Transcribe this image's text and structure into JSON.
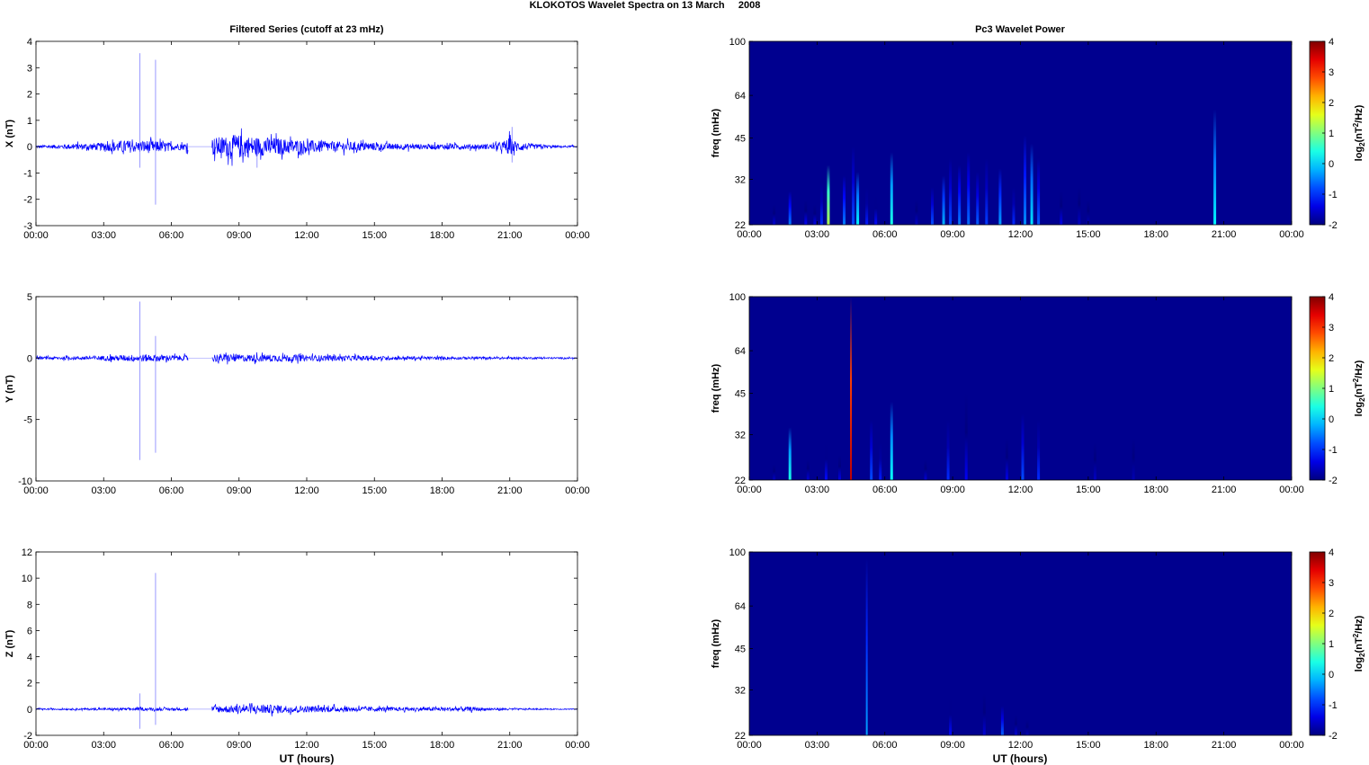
{
  "figure": {
    "title": "KLOKOTOS Wavelet Spectra on 13 March     2008",
    "left_column_title": "Filtered Series (cutoff at 23 mHz)",
    "right_column_title": "Pc3 Wavelet Power",
    "xlabel": "UT (hours)"
  },
  "colors": {
    "trace": "#0000ff",
    "background": "#00008f"
  },
  "chart_data": [
    {
      "type": "line",
      "id": "X",
      "ylabel": "X (nT)",
      "ylim": [
        -3,
        4
      ],
      "yticks": [
        "-3",
        "-2",
        "-1",
        "0",
        "1",
        "2",
        "3",
        "4"
      ],
      "xticks": [
        "00:00",
        "03:00",
        "06:00",
        "09:00",
        "12:00",
        "15:00",
        "18:00",
        "21:00",
        "00:00"
      ],
      "xlim_hours": [
        0,
        24
      ],
      "data_gap_hours": [
        6.75,
        7.8
      ],
      "envelope": {
        "x": [
          0,
          1,
          2,
          3,
          3.5,
          4,
          4.5,
          5,
          5.5,
          6,
          6.5,
          7.8,
          8.5,
          9,
          9.5,
          10,
          10.5,
          11,
          12,
          13,
          14,
          15,
          16,
          17,
          18,
          19,
          20,
          20.5,
          21,
          21.3,
          22,
          23,
          24
        ],
        "y": [
          0.05,
          0.08,
          0.12,
          0.15,
          0.2,
          0.25,
          0.2,
          0.25,
          0.2,
          0.15,
          0.12,
          0.35,
          0.4,
          0.45,
          0.4,
          0.35,
          0.35,
          0.3,
          0.25,
          0.2,
          0.18,
          0.15,
          0.12,
          0.1,
          0.1,
          0.1,
          0.1,
          0.12,
          0.35,
          0.2,
          0.1,
          0.05,
          0.03
        ]
      },
      "spikes": [
        {
          "x": 4.6,
          "y": [
            -0.8,
            3.55
          ]
        },
        {
          "x": 5.3,
          "y": [
            -2.2,
            3.3
          ]
        },
        {
          "x": 21.1,
          "y": [
            -0.6,
            0.75
          ]
        },
        {
          "x": 9.8,
          "y": [
            -0.8,
            0.3
          ]
        }
      ]
    },
    {
      "type": "line",
      "id": "Y",
      "ylabel": "Y (nT)",
      "ylim": [
        -10,
        5
      ],
      "yticks": [
        "-10",
        "-5",
        "0",
        "5"
      ],
      "xticks": [
        "00:00",
        "03:00",
        "06:00",
        "09:00",
        "12:00",
        "15:00",
        "18:00",
        "21:00",
        "00:00"
      ],
      "xlim_hours": [
        0,
        24
      ],
      "data_gap_hours": [
        6.75,
        7.8
      ],
      "envelope": {
        "x": [
          0,
          2,
          3,
          4,
          4.5,
          5,
          6,
          6.5,
          7.8,
          9,
          10,
          11,
          12,
          14,
          16,
          18,
          20,
          22,
          24
        ],
        "y": [
          0.1,
          0.15,
          0.2,
          0.25,
          0.3,
          0.3,
          0.25,
          0.2,
          0.35,
          0.3,
          0.3,
          0.3,
          0.25,
          0.2,
          0.15,
          0.12,
          0.1,
          0.08,
          0.05
        ]
      },
      "spikes": [
        {
          "x": 4.6,
          "y": [
            -8.3,
            4.6
          ]
        },
        {
          "x": 5.3,
          "y": [
            -7.7,
            1.8
          ]
        }
      ]
    },
    {
      "type": "line",
      "id": "Z",
      "ylabel": "Z (nT)",
      "ylim": [
        -2,
        12
      ],
      "yticks": [
        "-2",
        "0",
        "2",
        "4",
        "6",
        "8",
        "10",
        "12"
      ],
      "xticks": [
        "00:00",
        "03:00",
        "06:00",
        "09:00",
        "12:00",
        "15:00",
        "18:00",
        "21:00",
        "00:00"
      ],
      "xlim_hours": [
        0,
        24
      ],
      "data_gap_hours": [
        6.75,
        7.8
      ],
      "envelope": {
        "x": [
          0,
          2,
          4,
          5,
          6,
          6.5,
          7.8,
          9,
          10,
          11,
          12,
          14,
          16,
          18,
          19,
          20,
          22,
          24
        ],
        "y": [
          0.05,
          0.07,
          0.1,
          0.12,
          0.1,
          0.1,
          0.25,
          0.3,
          0.35,
          0.3,
          0.25,
          0.2,
          0.15,
          0.15,
          0.2,
          0.1,
          0.05,
          0.03
        ]
      },
      "spikes": [
        {
          "x": 4.6,
          "y": [
            -1.5,
            1.2
          ]
        },
        {
          "x": 5.3,
          "y": [
            -1.2,
            10.4
          ]
        }
      ]
    },
    {
      "type": "heatmap",
      "id": "X-power",
      "ylabel": "freq (mHz)",
      "ylim_mhz": [
        22,
        100
      ],
      "yscale": "log",
      "yticks": [
        "22",
        "32",
        "45",
        "64",
        "100"
      ],
      "xticks": [
        "00:00",
        "03:00",
        "06:00",
        "09:00",
        "12:00",
        "15:00",
        "18:00",
        "21:00",
        "00:00"
      ],
      "xlim_hours": [
        0,
        24
      ],
      "colorbar": {
        "label": "log2(nT2/Hz)",
        "range": [
          -2,
          4
        ],
        "ticks": [
          "-2",
          "-1",
          "0",
          "1",
          "2",
          "3",
          "4"
        ]
      },
      "streaks": [
        {
          "t": 1.1,
          "top": 26,
          "p": -1.5
        },
        {
          "t": 1.8,
          "top": 29,
          "p": -0.5
        },
        {
          "t": 2.5,
          "top": 27,
          "p": -1.3
        },
        {
          "t": 2.9,
          "top": 26,
          "p": -1.4
        },
        {
          "t": 3.2,
          "top": 31,
          "p": -1.0
        },
        {
          "t": 3.5,
          "top": 36,
          "p": 1.3
        },
        {
          "t": 4.2,
          "top": 33,
          "p": -0.5
        },
        {
          "t": 4.6,
          "top": 42,
          "p": -0.8
        },
        {
          "t": 4.8,
          "top": 34,
          "p": 0.2
        },
        {
          "t": 5.2,
          "top": 30,
          "p": -1.1
        },
        {
          "t": 5.6,
          "top": 28,
          "p": -1.2
        },
        {
          "t": 6.3,
          "top": 40,
          "p": 0.4
        },
        {
          "t": 7.4,
          "top": 27,
          "p": -1.6
        },
        {
          "t": 8.1,
          "top": 30,
          "p": -0.8
        },
        {
          "t": 8.6,
          "top": 33,
          "p": -0.2
        },
        {
          "t": 8.9,
          "top": 38,
          "p": -0.8
        },
        {
          "t": 9.3,
          "top": 36,
          "p": -0.5
        },
        {
          "t": 9.7,
          "top": 40,
          "p": -0.6
        },
        {
          "t": 10.1,
          "top": 34,
          "p": -0.7
        },
        {
          "t": 10.5,
          "top": 38,
          "p": -0.9
        },
        {
          "t": 11.1,
          "top": 35,
          "p": -0.3
        },
        {
          "t": 11.7,
          "top": 30,
          "p": -1.0
        },
        {
          "t": 12.2,
          "top": 46,
          "p": -0.4
        },
        {
          "t": 12.5,
          "top": 43,
          "p": 0.1
        },
        {
          "t": 12.8,
          "top": 38,
          "p": -0.7
        },
        {
          "t": 13.8,
          "top": 29,
          "p": -1.4
        },
        {
          "t": 14.6,
          "top": 30,
          "p": -1.6
        },
        {
          "t": 15.0,
          "top": 27,
          "p": -1.7
        },
        {
          "t": 20.6,
          "top": 57,
          "p": 0.2
        }
      ]
    },
    {
      "type": "heatmap",
      "id": "Y-power",
      "ylabel": "freq (mHz)",
      "ylim_mhz": [
        22,
        100
      ],
      "yscale": "log",
      "yticks": [
        "22",
        "32",
        "45",
        "64",
        "100"
      ],
      "xticks": [
        "00:00",
        "03:00",
        "06:00",
        "09:00",
        "12:00",
        "15:00",
        "18:00",
        "21:00",
        "00:00"
      ],
      "xlim_hours": [
        0,
        24
      ],
      "colorbar": {
        "label": "log2(nT2/Hz)",
        "range": [
          -2,
          4
        ],
        "ticks": [
          "-2",
          "-1",
          "0",
          "1",
          "2",
          "3",
          "4"
        ]
      },
      "streaks": [
        {
          "t": 1.1,
          "top": 25,
          "p": -1.6
        },
        {
          "t": 1.8,
          "top": 34,
          "p": 0.4
        },
        {
          "t": 2.6,
          "top": 26,
          "p": -1.5
        },
        {
          "t": 3.4,
          "top": 30,
          "p": -1.2
        },
        {
          "t": 4.0,
          "top": 27,
          "p": -1.4
        },
        {
          "t": 4.5,
          "top": 100,
          "p": 3.6
        },
        {
          "t": 5.4,
          "top": 36,
          "p": -0.8
        },
        {
          "t": 5.8,
          "top": 30,
          "p": -1.1
        },
        {
          "t": 6.3,
          "top": 42,
          "p": 0.3
        },
        {
          "t": 7.8,
          "top": 26,
          "p": -1.5
        },
        {
          "t": 8.8,
          "top": 36,
          "p": -1.0
        },
        {
          "t": 9.6,
          "top": 45,
          "p": -1.3
        },
        {
          "t": 11.4,
          "top": 31,
          "p": -1.4
        },
        {
          "t": 12.1,
          "top": 38,
          "p": -0.8
        },
        {
          "t": 12.8,
          "top": 36,
          "p": -1.0
        },
        {
          "t": 15.3,
          "top": 30,
          "p": -1.6
        },
        {
          "t": 17.0,
          "top": 31,
          "p": -1.7
        }
      ]
    },
    {
      "type": "heatmap",
      "id": "Z-power",
      "ylabel": "freq (mHz)",
      "ylim_mhz": [
        22,
        100
      ],
      "yscale": "log",
      "yticks": [
        "22",
        "32",
        "45",
        "64",
        "100"
      ],
      "xticks": [
        "00:00",
        "03:00",
        "06:00",
        "09:00",
        "12:00",
        "15:00",
        "18:00",
        "21:00",
        "00:00"
      ],
      "xlim_hours": [
        0,
        24
      ],
      "colorbar": {
        "label": "log2(nT2/Hz)",
        "range": [
          -2,
          4
        ],
        "ticks": [
          "-2",
          "-1",
          "0",
          "1",
          "2",
          "3",
          "4"
        ]
      },
      "streaks": [
        {
          "t": 5.2,
          "top": 95,
          "p": -0.3
        },
        {
          "t": 8.9,
          "top": 30,
          "p": -1.2
        },
        {
          "t": 10.4,
          "top": 31,
          "p": -1.5
        },
        {
          "t": 11.2,
          "top": 28,
          "p": -0.7
        },
        {
          "t": 11.8,
          "top": 26,
          "p": -1.5
        },
        {
          "t": 12.3,
          "top": 25,
          "p": -1.7
        }
      ]
    }
  ]
}
